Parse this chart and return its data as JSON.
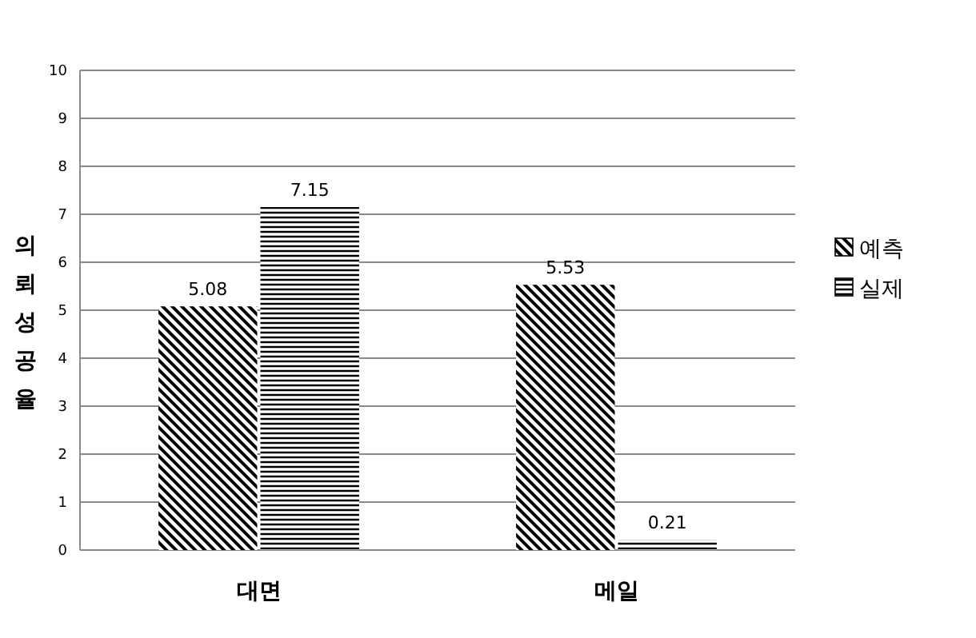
{
  "chart_data": {
    "type": "bar",
    "ylabel": "의뢰성공율",
    "categories": [
      "대면",
      "메일"
    ],
    "series": [
      {
        "name": "예측",
        "color": "#000000",
        "values": [
          5.08,
          5.53
        ]
      },
      {
        "name": "실제",
        "color": "#000000",
        "values": [
          7.15,
          0.21
        ]
      }
    ],
    "ylim": [
      0,
      10
    ],
    "yticks": [
      0,
      1,
      2,
      3,
      4,
      5,
      6,
      7,
      8,
      9,
      10
    ],
    "grid": "y",
    "legend": "right",
    "data_labels": true
  }
}
